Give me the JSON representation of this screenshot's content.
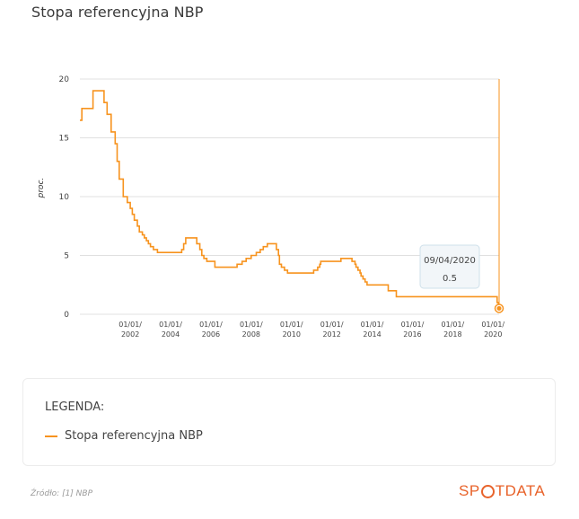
{
  "page_title": "Stopa referencyjna NBP",
  "colors": {
    "series": "#f7931e",
    "text": "#3a3a3a",
    "grid": "#e0e0e0",
    "brand": "#e8632b"
  },
  "chart_data": {
    "type": "line",
    "title": "Stopa referencyjna NBP",
    "xlabel": "",
    "ylabel": "proc.",
    "ylim": [
      0,
      20
    ],
    "yticks": [
      0,
      5,
      10,
      15,
      20
    ],
    "xlim": [
      1999.5,
      2020.3
    ],
    "xticks": [
      {
        "year": 2002,
        "label1": "01/01/",
        "label2": "2002"
      },
      {
        "year": 2004,
        "label1": "01/01/",
        "label2": "2004"
      },
      {
        "year": 2006,
        "label1": "01/01/",
        "label2": "2006"
      },
      {
        "year": 2008,
        "label1": "01/01/",
        "label2": "2008"
      },
      {
        "year": 2010,
        "label1": "01/01/",
        "label2": "2010"
      },
      {
        "year": 2012,
        "label1": "01/01/",
        "label2": "2012"
      },
      {
        "year": 2014,
        "label1": "01/01/",
        "label2": "2014"
      },
      {
        "year": 2016,
        "label1": "01/01/",
        "label2": "2016"
      },
      {
        "year": 2018,
        "label1": "01/01/",
        "label2": "2018"
      },
      {
        "year": 2020,
        "label1": "01/01/",
        "label2": "2020"
      }
    ],
    "grid": true,
    "step": true,
    "series": [
      {
        "name": "Stopa referencyjna NBP",
        "points": [
          [
            1999.5,
            16.5
          ],
          [
            1999.6,
            17.5
          ],
          [
            2000.1,
            17.5
          ],
          [
            2000.15,
            19.0
          ],
          [
            2000.6,
            19.0
          ],
          [
            2000.7,
            18.0
          ],
          [
            2000.85,
            17.0
          ],
          [
            2001.05,
            15.5
          ],
          [
            2001.25,
            14.5
          ],
          [
            2001.35,
            13.0
          ],
          [
            2001.45,
            11.5
          ],
          [
            2001.65,
            10.0
          ],
          [
            2001.85,
            9.5
          ],
          [
            2002.0,
            9.0
          ],
          [
            2002.1,
            8.5
          ],
          [
            2002.2,
            8.0
          ],
          [
            2002.35,
            7.5
          ],
          [
            2002.45,
            7.0
          ],
          [
            2002.6,
            6.75
          ],
          [
            2002.7,
            6.5
          ],
          [
            2002.8,
            6.25
          ],
          [
            2002.9,
            6.0
          ],
          [
            2003.0,
            5.75
          ],
          [
            2003.15,
            5.5
          ],
          [
            2003.35,
            5.25
          ],
          [
            2004.55,
            5.5
          ],
          [
            2004.65,
            6.0
          ],
          [
            2004.75,
            6.5
          ],
          [
            2005.3,
            6.0
          ],
          [
            2005.45,
            5.5
          ],
          [
            2005.55,
            5.0
          ],
          [
            2005.65,
            4.75
          ],
          [
            2005.8,
            4.5
          ],
          [
            2006.2,
            4.0
          ],
          [
            2007.3,
            4.25
          ],
          [
            2007.55,
            4.5
          ],
          [
            2007.75,
            4.75
          ],
          [
            2008.0,
            5.0
          ],
          [
            2008.25,
            5.25
          ],
          [
            2008.45,
            5.5
          ],
          [
            2008.6,
            5.75
          ],
          [
            2008.8,
            6.0
          ],
          [
            2009.25,
            5.5
          ],
          [
            2009.35,
            5.0
          ],
          [
            2009.4,
            4.25
          ],
          [
            2009.5,
            4.0
          ],
          [
            2009.65,
            3.75
          ],
          [
            2009.8,
            3.5
          ],
          [
            2011.1,
            3.75
          ],
          [
            2011.3,
            4.0
          ],
          [
            2011.4,
            4.25
          ],
          [
            2011.45,
            4.5
          ],
          [
            2012.45,
            4.75
          ],
          [
            2013.0,
            4.5
          ],
          [
            2013.15,
            4.25
          ],
          [
            2013.2,
            4.0
          ],
          [
            2013.3,
            3.75
          ],
          [
            2013.4,
            3.5
          ],
          [
            2013.45,
            3.25
          ],
          [
            2013.55,
            3.0
          ],
          [
            2013.65,
            2.75
          ],
          [
            2013.75,
            2.5
          ],
          [
            2014.8,
            2.0
          ],
          [
            2015.2,
            1.5
          ],
          [
            2020.18,
            1.5
          ],
          [
            2020.2,
            1.0
          ],
          [
            2020.27,
            0.5
          ],
          [
            2020.3,
            0.5
          ]
        ]
      }
    ],
    "tooltip": {
      "date": "09/04/2020",
      "value": "0.5"
    }
  },
  "legend": {
    "title": "LEGENDA:",
    "items": [
      {
        "label": "Stopa referencyjna NBP"
      }
    ]
  },
  "source": "Źródło: [1] NBP",
  "logo": {
    "part1": "SP",
    "part2": "TDATA"
  }
}
